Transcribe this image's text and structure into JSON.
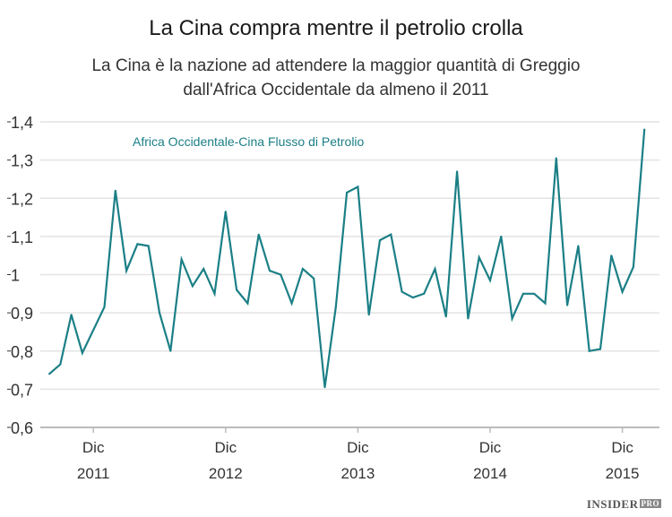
{
  "chart_data": {
    "type": "line",
    "title": "La Cina compra mentre il petrolio crolla",
    "subtitle": [
      "La Cina è la nazione ad attendere la maggior quantità di Greggio",
      "dall'Africa Occidentale da almeno il 2011"
    ],
    "xlabel": "",
    "ylabel": "",
    "ylim": [
      0.6,
      1.4
    ],
    "yticks": [
      "0,6",
      "0,7",
      "0,8",
      "0,9",
      "1",
      "1,1",
      "1,2",
      "1,3",
      "1,4"
    ],
    "grid": true,
    "line_color": "#1b7f86",
    "x_start": "2011-08",
    "x_end": "2016-02",
    "xticks": [
      {
        "month": "Dic",
        "year": "2011",
        "date": "2011-12"
      },
      {
        "month": "Dic",
        "year": "2012",
        "date": "2012-12"
      },
      {
        "month": "Dic",
        "year": "2013",
        "date": "2013-12"
      },
      {
        "month": "Dic",
        "year": "2014",
        "date": "2014-12"
      },
      {
        "month": "Dic",
        "year": "2015",
        "date": "2015-12"
      }
    ],
    "series": [
      {
        "name": "Africa Occidentale-Cina Flusso di Petrolio",
        "x": [
          "2011-08",
          "2011-09",
          "2011-10",
          "2011-11",
          "2011-12",
          "2012-01",
          "2012-02",
          "2012-03",
          "2012-04",
          "2012-05",
          "2012-06",
          "2012-07",
          "2012-08",
          "2012-09",
          "2012-10",
          "2012-11",
          "2012-12",
          "2013-01",
          "2013-02",
          "2013-03",
          "2013-04",
          "2013-05",
          "2013-06",
          "2013-07",
          "2013-08",
          "2013-09",
          "2013-10",
          "2013-11",
          "2013-12",
          "2014-01",
          "2014-02",
          "2014-03",
          "2014-04",
          "2014-05",
          "2014-06",
          "2014-07",
          "2014-08",
          "2014-09",
          "2014-10",
          "2014-11",
          "2014-12",
          "2015-01",
          "2015-02",
          "2015-03",
          "2015-04",
          "2015-05",
          "2015-06",
          "2015-07",
          "2015-08",
          "2015-09",
          "2015-10",
          "2015-11",
          "2015-12",
          "2016-01",
          "2016-02"
        ],
        "values": [
          0.74,
          0.765,
          0.895,
          0.795,
          0.855,
          0.915,
          1.22,
          1.01,
          1.08,
          1.075,
          0.9,
          0.8,
          1.04,
          0.97,
          1.015,
          0.95,
          1.165,
          0.96,
          0.925,
          1.105,
          1.01,
          1.0,
          0.925,
          1.015,
          0.99,
          0.705,
          0.915,
          1.215,
          1.23,
          0.895,
          1.09,
          1.105,
          0.955,
          0.94,
          0.95,
          1.015,
          0.89,
          1.27,
          0.885,
          1.045,
          0.985,
          1.1,
          0.885,
          0.95,
          0.95,
          0.925,
          1.305,
          0.92,
          1.075,
          0.8,
          0.805,
          1.05,
          0.955,
          1.02,
          1.38
        ]
      }
    ]
  },
  "logo": {
    "text": "INSIDER",
    "badge": "PRO"
  }
}
